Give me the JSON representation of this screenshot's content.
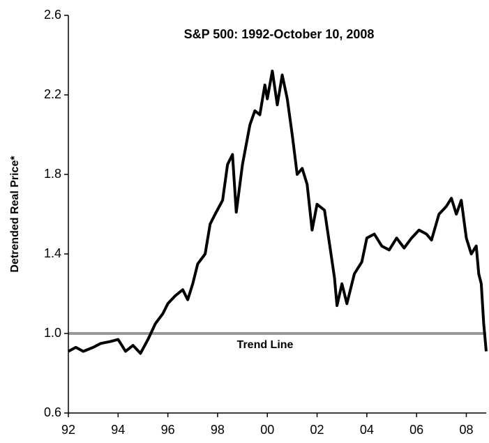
{
  "chart_data": {
    "type": "line",
    "title": "S&P 500:  1992-October 10, 2008",
    "y_label": "Detrended Real Price*",
    "reference_line": {
      "value": 1,
      "label": "Trend Line",
      "color": "#999999"
    },
    "xlim": [
      1992,
      2008.8
    ],
    "xticks": [
      {
        "value": 1992,
        "label": "92"
      },
      {
        "value": 1994,
        "label": "94"
      },
      {
        "value": 1996,
        "label": "96"
      },
      {
        "value": 1998,
        "label": "98"
      },
      {
        "value": 2000,
        "label": "00"
      },
      {
        "value": 2002,
        "label": "02"
      },
      {
        "value": 2004,
        "label": "04"
      },
      {
        "value": 2006,
        "label": "06"
      },
      {
        "value": 2008,
        "label": "08"
      }
    ],
    "ylim": [
      0.6,
      2.6
    ],
    "yticks": [
      0.6,
      {
        "value": 1,
        "label": "1.0"
      },
      1.4,
      1.8,
      2.2,
      2.6
    ],
    "grid": false,
    "series": [
      {
        "name": "S&P 500",
        "color": "#000000",
        "x": [
          1992.0,
          1992.3,
          1992.6,
          1993.0,
          1993.3,
          1993.7,
          1994.0,
          1994.3,
          1994.6,
          1994.9,
          1995.2,
          1995.5,
          1995.8,
          1996.0,
          1996.3,
          1996.6,
          1996.8,
          1997.0,
          1997.2,
          1997.5,
          1997.7,
          1997.9,
          1998.2,
          1998.4,
          1998.6,
          1998.75,
          1999.0,
          1999.3,
          1999.5,
          1999.7,
          1999.9,
          2000.0,
          2000.2,
          2000.4,
          2000.6,
          2000.8,
          2001.0,
          2001.2,
          2001.4,
          2001.6,
          2001.8,
          2002.0,
          2002.3,
          2002.5,
          2002.7,
          2002.8,
          2003.0,
          2003.2,
          2003.5,
          2003.8,
          2004.0,
          2004.3,
          2004.6,
          2004.9,
          2005.2,
          2005.5,
          2005.8,
          2006.1,
          2006.4,
          2006.6,
          2006.9,
          2007.2,
          2007.4,
          2007.6,
          2007.8,
          2008.0,
          2008.2,
          2008.4,
          2008.5,
          2008.6,
          2008.7,
          2008.8
        ],
        "values": [
          0.91,
          0.93,
          0.91,
          0.93,
          0.95,
          0.96,
          0.97,
          0.91,
          0.94,
          0.9,
          0.97,
          1.05,
          1.1,
          1.15,
          1.19,
          1.22,
          1.17,
          1.25,
          1.35,
          1.4,
          1.55,
          1.6,
          1.67,
          1.85,
          1.9,
          1.61,
          1.85,
          2.05,
          2.12,
          2.1,
          2.25,
          2.18,
          2.32,
          2.15,
          2.3,
          2.18,
          2.0,
          1.8,
          1.83,
          1.75,
          1.52,
          1.65,
          1.62,
          1.45,
          1.28,
          1.14,
          1.25,
          1.15,
          1.3,
          1.36,
          1.48,
          1.5,
          1.44,
          1.42,
          1.48,
          1.43,
          1.48,
          1.52,
          1.5,
          1.47,
          1.6,
          1.64,
          1.68,
          1.6,
          1.67,
          1.48,
          1.4,
          1.44,
          1.3,
          1.25,
          1.05,
          0.91
        ]
      }
    ]
  }
}
